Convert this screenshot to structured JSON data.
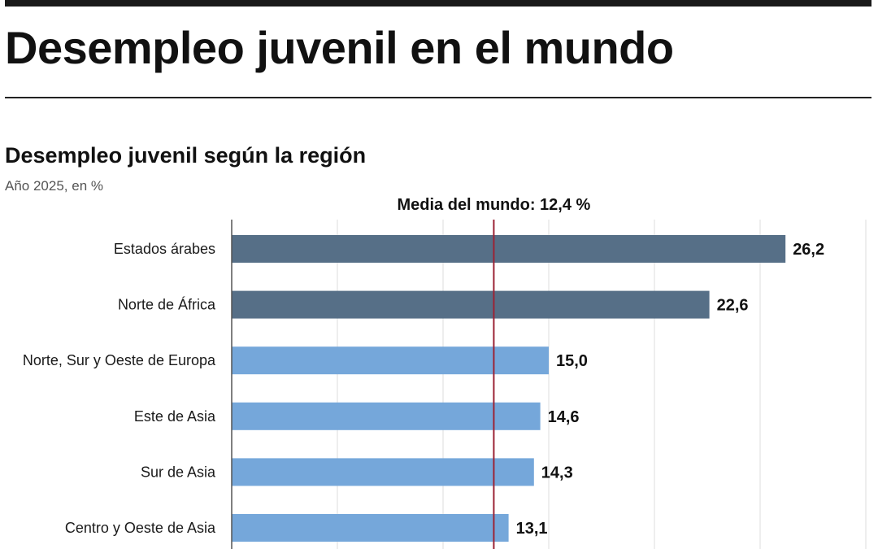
{
  "header": {
    "title": "Desempleo juvenil en el mundo"
  },
  "chart_data": {
    "type": "bar",
    "orientation": "horizontal",
    "title": "Desempleo juvenil según la región",
    "subtitle": "Año 2025, en %",
    "categories": [
      "Estados árabes",
      "Norte de África",
      "Norte, Sur y Oeste de Europa",
      "Este de Asia",
      "Sur de Asia",
      "Centro y Oeste de Asia"
    ],
    "values": [
      26.2,
      22.6,
      15.0,
      14.6,
      14.3,
      13.1
    ],
    "value_labels": [
      "26,2",
      "22,6",
      "15,0",
      "14,6",
      "14,3",
      "13,1"
    ],
    "bar_colors": [
      "#566f87",
      "#566f87",
      "#75a7da",
      "#75a7da",
      "#75a7da",
      "#75a7da"
    ],
    "reference_line": {
      "value": 12.4,
      "label": "Media del mundo: 12,4 %",
      "color": "#9b2335"
    },
    "xlim": [
      0,
      30
    ],
    "grid": true,
    "gridline_values": [
      5,
      10,
      15,
      20,
      25,
      30
    ]
  }
}
